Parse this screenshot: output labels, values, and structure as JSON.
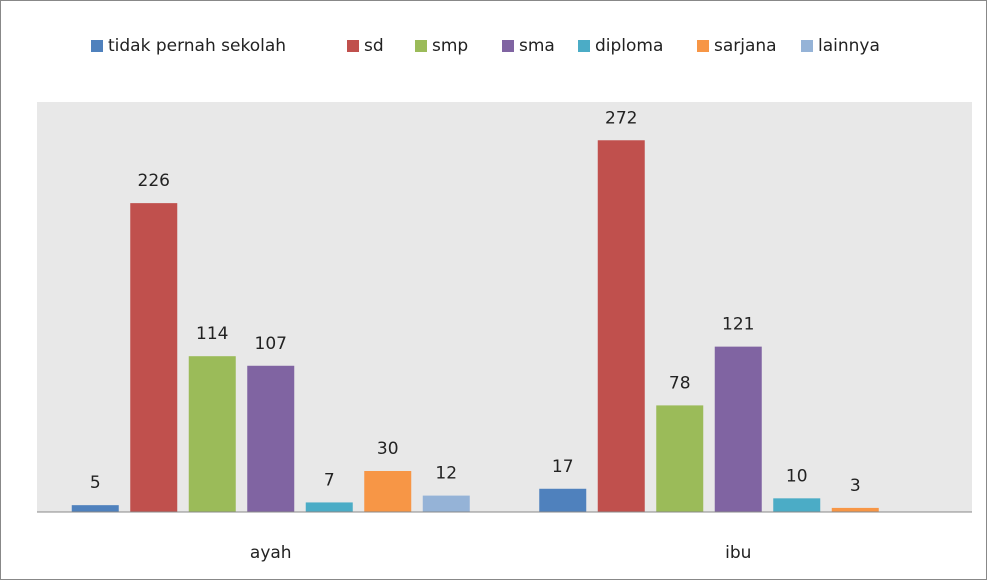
{
  "chart_data": {
    "type": "bar",
    "categories": [
      "ayah",
      "ibu"
    ],
    "series": [
      {
        "name": "tidak pernah sekolah",
        "color": "#4f81bd",
        "values": [
          5,
          17
        ]
      },
      {
        "name": "sd",
        "color": "#c0504d",
        "values": [
          226,
          272
        ]
      },
      {
        "name": "smp",
        "color": "#9bbb59",
        "values": [
          114,
          78
        ]
      },
      {
        "name": "sma",
        "color": "#8064a2",
        "values": [
          107,
          121
        ]
      },
      {
        "name": "diploma",
        "color": "#4bacc6",
        "values": [
          7,
          10
        ]
      },
      {
        "name": "sarjana",
        "color": "#f79646",
        "values": [
          30,
          3
        ]
      },
      {
        "name": "lainnya",
        "color": "#95b3d7",
        "values": [
          12,
          null
        ]
      }
    ],
    "ylim": [
      0,
      300
    ],
    "legend": "top",
    "grid": false
  }
}
